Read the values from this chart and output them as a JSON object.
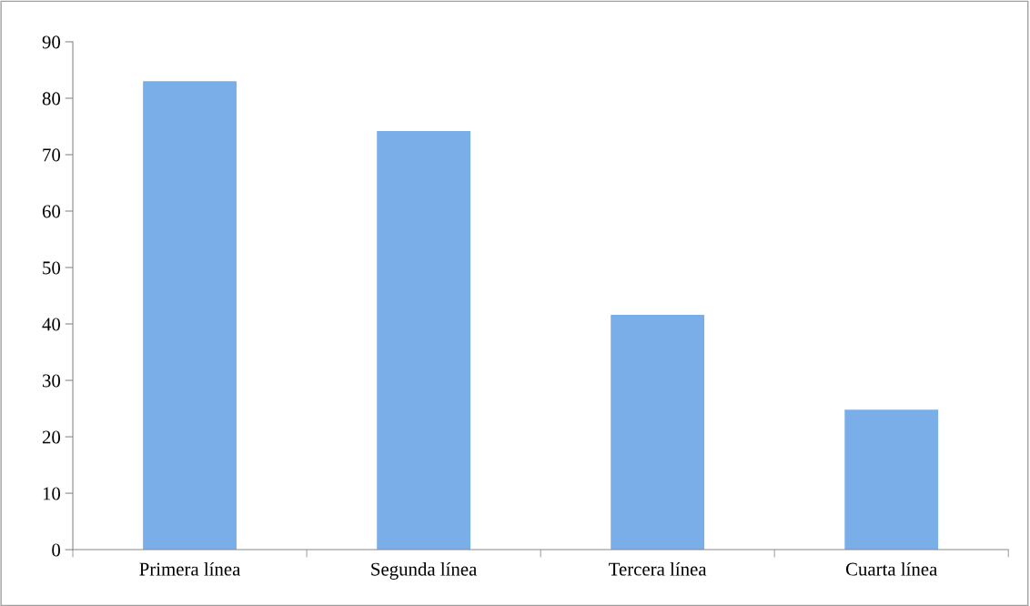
{
  "chart_data": {
    "type": "bar",
    "categories": [
      "Primera línea",
      "Segunda línea",
      "Tercera línea",
      "Cuarta línea"
    ],
    "values": [
      83,
      74.2,
      41.6,
      24.8
    ],
    "color": "#7aaee8",
    "ylim": [
      0,
      90
    ],
    "yticks": [
      0,
      10,
      20,
      30,
      40,
      50,
      60,
      70,
      80,
      90
    ],
    "grid": false,
    "legend": false
  }
}
